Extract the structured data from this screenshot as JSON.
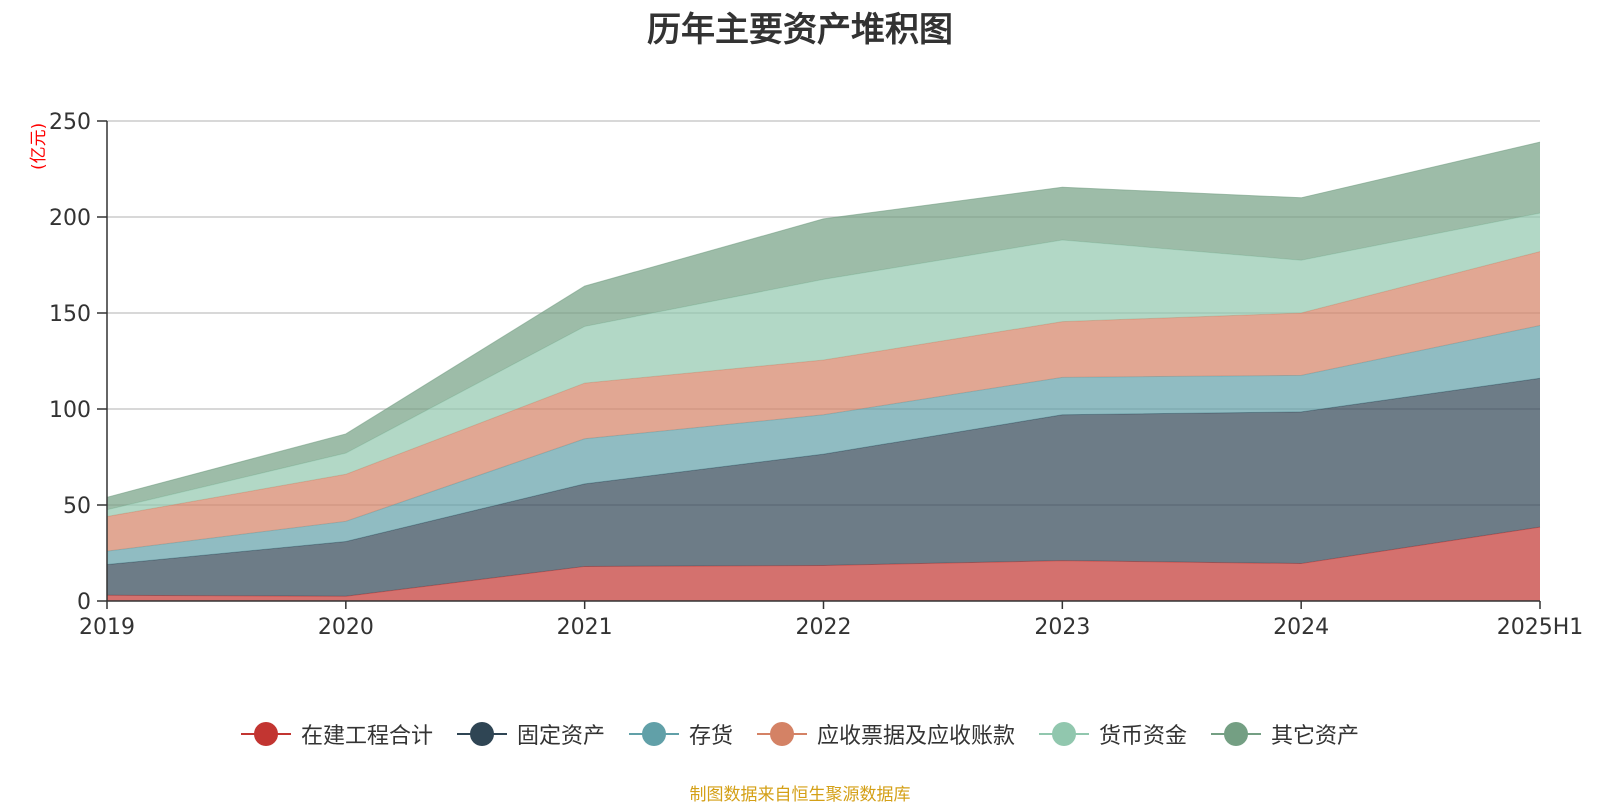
{
  "title": "历年主要资产堆积图",
  "unit_label": "(亿元)",
  "footer": "制图数据来自恒生聚源数据库",
  "chart_data": {
    "type": "area",
    "stacked": true,
    "title": "历年主要资产堆积图",
    "ylabel": "(亿元)",
    "ylim": [
      0,
      250
    ],
    "yticks": [
      0,
      50,
      100,
      150,
      200,
      250
    ],
    "grid": true,
    "legend_position": "bottom",
    "categories": [
      "2019",
      "2020",
      "2021",
      "2022",
      "2023",
      "2024",
      "2025H1"
    ],
    "series": [
      {
        "name": "在建工程合计",
        "color": "#c23531",
        "values": [
          3,
          2.5,
          18,
          18.5,
          21,
          19.5,
          38.5
        ]
      },
      {
        "name": "固定资产",
        "color": "#2f4554",
        "values": [
          16,
          28.5,
          43,
          58,
          76,
          79,
          77.5
        ]
      },
      {
        "name": "存货",
        "color": "#61a0a8",
        "values": [
          7,
          10.5,
          23.5,
          20.5,
          19.5,
          19,
          27.5
        ]
      },
      {
        "name": "应收票据及应收账款",
        "color": "#d48265",
        "values": [
          18,
          24.5,
          29,
          28.5,
          29,
          32.5,
          38.5
        ]
      },
      {
        "name": "货币资金",
        "color": "#91c7ae",
        "values": [
          3.5,
          11,
          29.5,
          42,
          42.5,
          27.5,
          20
        ]
      },
      {
        "name": "其它资产",
        "color": "#749f83",
        "values": [
          6.5,
          10,
          21,
          31.5,
          27.5,
          32.5,
          37
        ]
      }
    ]
  }
}
